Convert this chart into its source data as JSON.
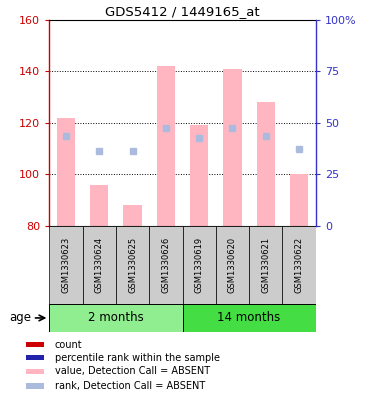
{
  "title": "GDS5412 / 1449165_at",
  "samples": [
    "GSM1330623",
    "GSM1330624",
    "GSM1330625",
    "GSM1330626",
    "GSM1330619",
    "GSM1330620",
    "GSM1330621",
    "GSM1330622"
  ],
  "bar_bottom": 80,
  "bar_values": [
    122,
    96,
    88,
    142,
    119,
    141,
    128,
    100
  ],
  "rank_values": [
    115,
    109,
    109,
    118,
    114,
    118,
    115,
    110
  ],
  "ylim_left": [
    80,
    160
  ],
  "ylim_right": [
    0,
    100
  ],
  "yticks_left": [
    80,
    100,
    120,
    140,
    160
  ],
  "yticks_right": [
    0,
    25,
    50,
    75,
    100
  ],
  "yticklabels_right": [
    "0",
    "25",
    "50",
    "75",
    "100%"
  ],
  "bar_color": "#FFB6C1",
  "rank_color": "#AABBDD",
  "left_tick_color": "#CC0000",
  "right_tick_color": "#3333CC",
  "label_area_bg": "#CCCCCC",
  "group1_color": "#90EE90",
  "group2_color": "#44DD44",
  "legend_items": [
    {
      "color": "#CC0000",
      "label": "count"
    },
    {
      "color": "#2222AA",
      "label": "percentile rank within the sample"
    },
    {
      "color": "#FFB6C1",
      "label": "value, Detection Call = ABSENT"
    },
    {
      "color": "#AABBDD",
      "label": "rank, Detection Call = ABSENT"
    }
  ]
}
